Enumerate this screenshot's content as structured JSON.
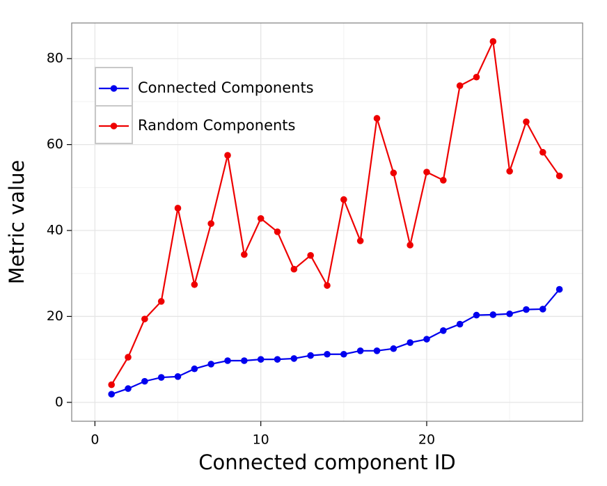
{
  "chart_data": {
    "type": "line",
    "x_label": "Connected component ID",
    "y_label": "Metric value",
    "x": [
      1,
      2,
      3,
      4,
      5,
      6,
      7,
      8,
      9,
      10,
      11,
      12,
      13,
      14,
      15,
      16,
      17,
      18,
      19,
      20,
      21,
      22,
      23,
      24,
      25,
      26,
      27,
      28
    ],
    "series": [
      {
        "name": "Connected Components",
        "color": "#0000ee",
        "values": [
          1.9,
          3.2,
          4.9,
          5.8,
          6.0,
          7.8,
          8.9,
          9.7,
          9.7,
          10.0,
          10.0,
          10.2,
          10.9,
          11.2,
          11.2,
          12.0,
          12.0,
          12.5,
          13.9,
          14.7,
          16.7,
          18.2,
          20.3,
          20.4,
          20.6,
          21.6,
          21.7,
          26.3
        ]
      },
      {
        "name": "Random Components",
        "color": "#ee0000",
        "values": [
          4.1,
          10.5,
          19.4,
          23.5,
          45.2,
          27.4,
          41.6,
          57.5,
          34.4,
          42.8,
          39.7,
          31.0,
          34.2,
          27.2,
          47.2,
          37.6,
          66.1,
          53.4,
          36.6,
          53.6,
          51.7,
          73.7,
          75.7,
          84.0,
          53.8,
          65.3,
          58.2,
          52.7
        ]
      }
    ],
    "xlim": [
      -1.4,
      29.4
    ],
    "xticks": [
      0,
      10,
      20
    ],
    "x_minor_ticks": [
      5,
      15,
      25
    ],
    "ylim": [
      -4.4,
      88.3
    ],
    "yticks": [
      0,
      20,
      40,
      60,
      80
    ],
    "y_minor_ticks": [
      10,
      30,
      50,
      70
    ],
    "grid": true,
    "legend": "upper-left"
  }
}
